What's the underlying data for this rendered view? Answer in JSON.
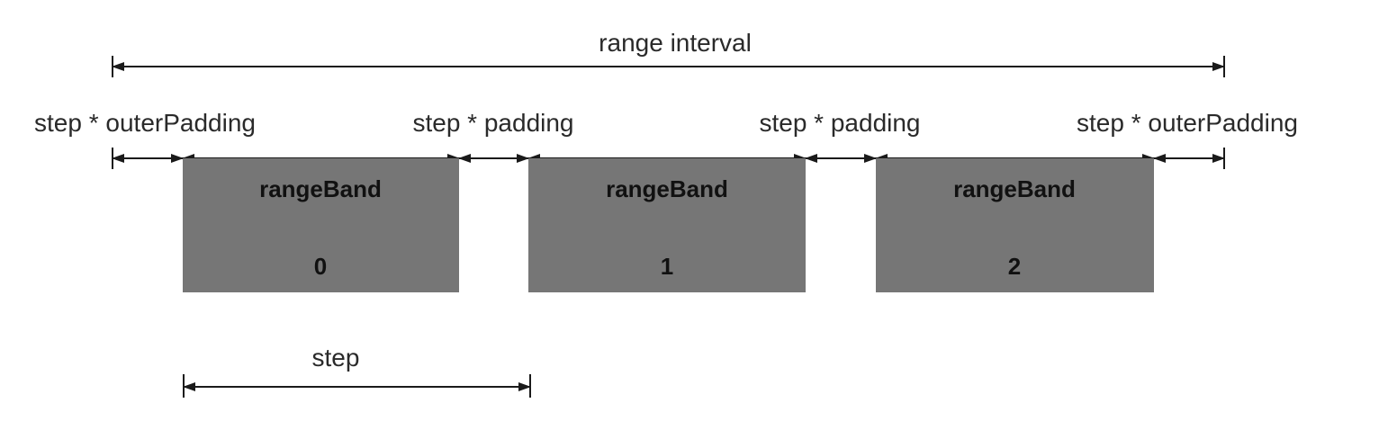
{
  "labels": {
    "range_interval": "range interval",
    "outer_padding_left": "step * outerPadding",
    "padding_1": "step * padding",
    "padding_2": "step * padding",
    "outer_padding_right": "step * outerPadding",
    "step": "step"
  },
  "bands": [
    {
      "label": "rangeBand",
      "index": "0"
    },
    {
      "label": "rangeBand",
      "index": "1"
    },
    {
      "label": "rangeBand",
      "index": "2"
    }
  ],
  "colors": {
    "band_fill": "#767676",
    "line": "#1a1a1a",
    "text": "#2a2a2a"
  }
}
